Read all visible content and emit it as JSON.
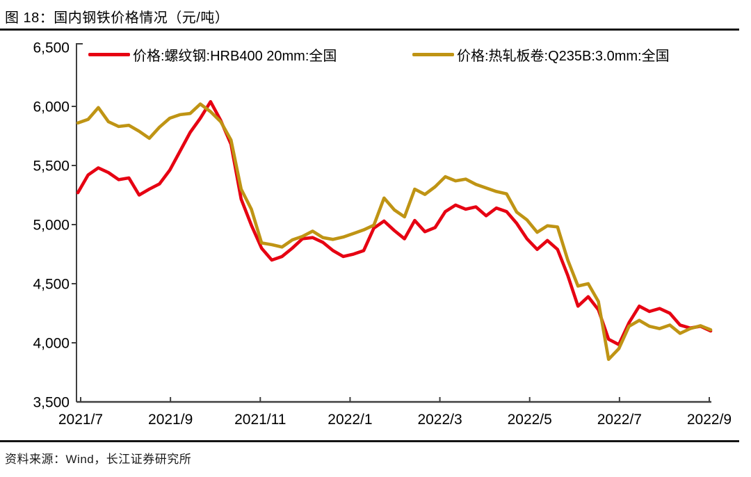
{
  "page": {
    "title": "图 18：国内钢铁价格情况（元/吨）",
    "source": "资料来源：Wind，长江证券研究所"
  },
  "colors": {
    "rebar_red": "#e60012",
    "hrc_gold": "#bf9414",
    "axis": "#3f3f3f",
    "text": "#000000"
  },
  "legend": [
    {
      "label": "价格:螺纹钢:HRB400 20mm:全国",
      "color": "#e60012"
    },
    {
      "label": "价格:热轧板卷:Q235B:3.0mm:全国",
      "color": "#bf9414"
    }
  ],
  "chart_data": {
    "type": "line",
    "title": "国内钢铁价格情况",
    "unit": "元/吨",
    "xlabel": "",
    "ylabel": "",
    "ylim": [
      3500,
      6500
    ],
    "grid": false,
    "legend_position": "top-inside",
    "x_tick_labels": [
      "2021/7",
      "2021/9",
      "2021/11",
      "2022/1",
      "2022/3",
      "2022/5",
      "2022/7",
      "2022/9"
    ],
    "y_ticks": [
      3500,
      4000,
      4500,
      5000,
      5500,
      6000,
      6500
    ],
    "y_tick_labels": [
      "3,500",
      "4,000",
      "4,500",
      "5,000",
      "5,500",
      "6,000",
      "6,500"
    ],
    "series": [
      {
        "name": "价格:螺纹钢:HRB400 20mm:全国",
        "color": "#e60012",
        "values": [
          5270,
          5420,
          5480,
          5440,
          5380,
          5395,
          5250,
          5300,
          5345,
          5460,
          5620,
          5780,
          5900,
          6040,
          5880,
          5680,
          5215,
          4995,
          4800,
          4700,
          4730,
          4800,
          4880,
          4890,
          4850,
          4780,
          4730,
          4750,
          4780,
          4970,
          5030,
          4950,
          4880,
          5035,
          4940,
          4975,
          5110,
          5165,
          5130,
          5150,
          5075,
          5140,
          5110,
          5010,
          4880,
          4790,
          4865,
          4790,
          4570,
          4310,
          4390,
          4280,
          4030,
          3985,
          4170,
          4310,
          4265,
          4290,
          4250,
          4150,
          4125,
          4140,
          4100
        ]
      },
      {
        "name": "价格:热轧板卷:Q235B:3.0mm:全国",
        "color": "#bf9414",
        "values": [
          5860,
          5890,
          5990,
          5870,
          5830,
          5840,
          5790,
          5730,
          5825,
          5900,
          5930,
          5940,
          6020,
          5955,
          5870,
          5715,
          5300,
          5130,
          4845,
          4830,
          4810,
          4870,
          4900,
          4945,
          4890,
          4875,
          4895,
          4925,
          4955,
          4995,
          5225,
          5125,
          5065,
          5300,
          5255,
          5320,
          5405,
          5370,
          5385,
          5340,
          5310,
          5280,
          5260,
          5105,
          5040,
          4935,
          4990,
          4980,
          4700,
          4480,
          4500,
          4350,
          3860,
          3950,
          4140,
          4190,
          4140,
          4120,
          4150,
          4080,
          4120,
          4145,
          4110
        ]
      }
    ]
  }
}
